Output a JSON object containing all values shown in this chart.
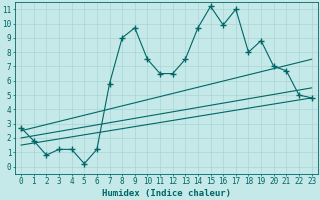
{
  "xlabel": "Humidex (Indice chaleur)",
  "ylabel": "",
  "bg_color": "#c5e8e8",
  "line_color": "#006666",
  "xmin": 0,
  "xmax": 23,
  "ymin": 0,
  "ymax": 11,
  "main_x": [
    0,
    1,
    2,
    3,
    4,
    5,
    6,
    7,
    8,
    9,
    10,
    11,
    12,
    13,
    14,
    15,
    16,
    17,
    18,
    19,
    20,
    21,
    22,
    23
  ],
  "main_y": [
    2.7,
    1.8,
    0.8,
    1.2,
    1.2,
    0.2,
    1.2,
    5.8,
    9.0,
    9.7,
    7.5,
    6.5,
    6.5,
    7.5,
    9.7,
    11.2,
    9.9,
    11.0,
    8.0,
    8.8,
    7.0,
    6.7,
    5.0,
    4.8
  ],
  "trend1_x": [
    0,
    23
  ],
  "trend1_y": [
    2.5,
    7.5
  ],
  "trend2_x": [
    0,
    23
  ],
  "trend2_y": [
    2.0,
    5.5
  ],
  "trend3_x": [
    0,
    23
  ],
  "trend3_y": [
    1.5,
    4.8
  ],
  "xticks": [
    0,
    1,
    2,
    3,
    4,
    5,
    6,
    7,
    8,
    9,
    10,
    11,
    12,
    13,
    14,
    15,
    16,
    17,
    18,
    19,
    20,
    21,
    22,
    23
  ],
  "yticks": [
    0,
    1,
    2,
    3,
    4,
    5,
    6,
    7,
    8,
    9,
    10,
    11
  ],
  "grid_color": "#aad4d4",
  "font_color": "#006666",
  "tick_fontsize": 5.5,
  "xlabel_fontsize": 6.5,
  "marker": "+",
  "markersize": 4.0,
  "linewidth": 0.8
}
